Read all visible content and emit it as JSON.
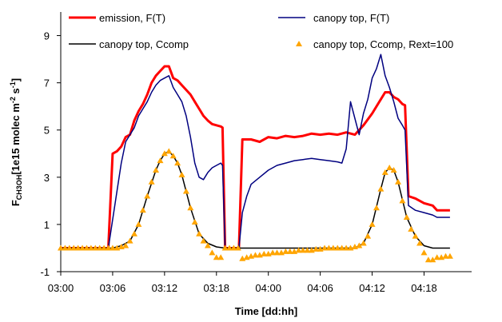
{
  "chart_data": {
    "type": "line",
    "title": "",
    "xlabel": "Time [dd:hh]",
    "ylabel": {
      "main": "F",
      "sub": "CH3OH",
      "unit_a": "[1e15 molec m",
      "sup1": "-2",
      "unit_b": " s",
      "sup2": "-1",
      "unit_c": "]"
    },
    "ylim": [
      -1,
      10
    ],
    "yticks": [
      -1,
      1,
      3,
      5,
      7,
      9
    ],
    "xticks": [
      {
        "pos": 0,
        "label": "03:00"
      },
      {
        "pos": 6,
        "label": "03:06"
      },
      {
        "pos": 12,
        "label": "03:12"
      },
      {
        "pos": 18,
        "label": "03:18"
      },
      {
        "pos": 24,
        "label": "04:00"
      },
      {
        "pos": 30,
        "label": "04:06"
      },
      {
        "pos": 36,
        "label": "04:12"
      },
      {
        "pos": 42,
        "label": "04:18"
      }
    ],
    "xlim": [
      0,
      47.5
    ],
    "grid": false,
    "legend": "top",
    "series": [
      {
        "name": "emission, F(T)",
        "color": "#ff0000",
        "style": "line",
        "width": 3,
        "points": [
          [
            0,
            0
          ],
          [
            5.5,
            0
          ],
          [
            6,
            4
          ],
          [
            6.5,
            4.1
          ],
          [
            7,
            4.3
          ],
          [
            7.5,
            4.7
          ],
          [
            8,
            4.8
          ],
          [
            8.5,
            5.4
          ],
          [
            9,
            5.8
          ],
          [
            9.5,
            6.1
          ],
          [
            10,
            6.5
          ],
          [
            10.5,
            7
          ],
          [
            11,
            7.3
          ],
          [
            11.5,
            7.5
          ],
          [
            12,
            7.7
          ],
          [
            12.5,
            7.7
          ],
          [
            13,
            7.2
          ],
          [
            13.5,
            7.1
          ],
          [
            14,
            6.9
          ],
          [
            14.5,
            6.7
          ],
          [
            15,
            6.5
          ],
          [
            15.5,
            6.2
          ],
          [
            16,
            5.9
          ],
          [
            16.5,
            5.6
          ],
          [
            17,
            5.4
          ],
          [
            17.5,
            5.25
          ],
          [
            18,
            5.2
          ],
          [
            18.5,
            5.15
          ],
          [
            18.7,
            5.1
          ],
          [
            19,
            0
          ],
          [
            20.6,
            0
          ],
          [
            21,
            4.6
          ],
          [
            22,
            4.6
          ],
          [
            23,
            4.5
          ],
          [
            24,
            4.7
          ],
          [
            25,
            4.65
          ],
          [
            26,
            4.75
          ],
          [
            27,
            4.7
          ],
          [
            28,
            4.75
          ],
          [
            29,
            4.85
          ],
          [
            30,
            4.8
          ],
          [
            31,
            4.85
          ],
          [
            32,
            4.8
          ],
          [
            33,
            4.9
          ],
          [
            34,
            4.8
          ],
          [
            35,
            5.2
          ],
          [
            36,
            5.7
          ],
          [
            37,
            6.3
          ],
          [
            37.5,
            6.6
          ],
          [
            38,
            6.6
          ],
          [
            38.5,
            6.4
          ],
          [
            39,
            6.3
          ],
          [
            39.5,
            6.1
          ],
          [
            39.8,
            6.05
          ],
          [
            40.2,
            2.2
          ],
          [
            41,
            2.1
          ],
          [
            42,
            1.9
          ],
          [
            43,
            1.8
          ],
          [
            43.5,
            1.6
          ],
          [
            45,
            1.6
          ]
        ]
      },
      {
        "name": "canopy top, F(T)",
        "color": "#000080",
        "style": "line",
        "width": 1.5,
        "points": [
          [
            0,
            0
          ],
          [
            5.5,
            0
          ],
          [
            6,
            1.2
          ],
          [
            6.5,
            2.4
          ],
          [
            7,
            3.6
          ],
          [
            7.5,
            4.5
          ],
          [
            8,
            4.8
          ],
          [
            8.5,
            5.1
          ],
          [
            9,
            5.6
          ],
          [
            9.5,
            5.9
          ],
          [
            10,
            6.2
          ],
          [
            10.5,
            6.6
          ],
          [
            11,
            6.9
          ],
          [
            11.5,
            7.1
          ],
          [
            12,
            7.2
          ],
          [
            12.5,
            7.3
          ],
          [
            13,
            6.8
          ],
          [
            13.5,
            6.5
          ],
          [
            14,
            6.2
          ],
          [
            14.5,
            5.6
          ],
          [
            15,
            4.7
          ],
          [
            15.5,
            3.6
          ],
          [
            16,
            3
          ],
          [
            16.5,
            2.9
          ],
          [
            17,
            3.2
          ],
          [
            17.5,
            3.4
          ],
          [
            18,
            3.5
          ],
          [
            18.5,
            3.6
          ],
          [
            18.7,
            3.5
          ],
          [
            19,
            0
          ],
          [
            20.6,
            0
          ],
          [
            21,
            1.5
          ],
          [
            21.5,
            2.2
          ],
          [
            22,
            2.7
          ],
          [
            23,
            3
          ],
          [
            24,
            3.3
          ],
          [
            25,
            3.5
          ],
          [
            26,
            3.6
          ],
          [
            27,
            3.7
          ],
          [
            28,
            3.75
          ],
          [
            29,
            3.8
          ],
          [
            30,
            3.75
          ],
          [
            31,
            3.7
          ],
          [
            32,
            3.65
          ],
          [
            32.5,
            3.6
          ],
          [
            33,
            4.2
          ],
          [
            33.5,
            6.2
          ],
          [
            34,
            5.5
          ],
          [
            34.5,
            4.8
          ],
          [
            35,
            5.7
          ],
          [
            35.5,
            6.3
          ],
          [
            36,
            7.2
          ],
          [
            36.5,
            7.6
          ],
          [
            37,
            8.2
          ],
          [
            37.5,
            7.3
          ],
          [
            38,
            6.8
          ],
          [
            38.5,
            6.2
          ],
          [
            39,
            5.5
          ],
          [
            39.5,
            5.2
          ],
          [
            39.8,
            5
          ],
          [
            40.2,
            1.8
          ],
          [
            41,
            1.6
          ],
          [
            42,
            1.5
          ],
          [
            43,
            1.4
          ],
          [
            43.5,
            1.3
          ],
          [
            45,
            1.3
          ]
        ]
      },
      {
        "name": "canopy top, Ccomp",
        "color": "#000000",
        "style": "line",
        "width": 1.5,
        "points": [
          [
            0,
            0
          ],
          [
            6,
            0
          ],
          [
            7,
            0.1
          ],
          [
            8,
            0.3
          ],
          [
            9,
            1
          ],
          [
            10,
            2.2
          ],
          [
            11,
            3.3
          ],
          [
            11.5,
            3.7
          ],
          [
            12,
            4
          ],
          [
            12.5,
            4.1
          ],
          [
            13,
            3.9
          ],
          [
            13.5,
            3.6
          ],
          [
            14,
            3.1
          ],
          [
            15,
            1.7
          ],
          [
            16,
            0.6
          ],
          [
            17,
            0.2
          ],
          [
            18,
            0.05
          ],
          [
            19,
            0
          ],
          [
            34,
            0
          ],
          [
            35,
            0.2
          ],
          [
            36,
            1
          ],
          [
            37,
            2.5
          ],
          [
            37.5,
            3.2
          ],
          [
            38,
            3.4
          ],
          [
            38.5,
            3.3
          ],
          [
            39,
            2.8
          ],
          [
            40,
            1.3
          ],
          [
            41,
            0.5
          ],
          [
            42,
            0.1
          ],
          [
            43,
            0
          ],
          [
            45,
            0
          ]
        ]
      },
      {
        "name": "canopy top, Ccomp, Rext=100",
        "color": "#ffa500",
        "style": "markers",
        "points": [
          [
            0,
            0
          ],
          [
            0.5,
            0
          ],
          [
            1,
            0
          ],
          [
            1.5,
            0
          ],
          [
            2,
            0
          ],
          [
            2.5,
            0
          ],
          [
            3,
            0
          ],
          [
            3.5,
            0
          ],
          [
            4,
            0
          ],
          [
            4.5,
            0
          ],
          [
            5,
            0
          ],
          [
            5.5,
            0
          ],
          [
            6,
            0
          ],
          [
            6.5,
            0
          ],
          [
            7,
            0.05
          ],
          [
            7.5,
            0.1
          ],
          [
            8,
            0.3
          ],
          [
            8.5,
            0.6
          ],
          [
            9,
            1
          ],
          [
            9.5,
            1.6
          ],
          [
            10,
            2.2
          ],
          [
            10.5,
            2.8
          ],
          [
            11,
            3.3
          ],
          [
            11.5,
            3.7
          ],
          [
            12,
            4
          ],
          [
            12.5,
            4.1
          ],
          [
            13,
            3.9
          ],
          [
            13.5,
            3.6
          ],
          [
            14,
            3.1
          ],
          [
            14.5,
            2.4
          ],
          [
            15,
            1.7
          ],
          [
            15.5,
            1.1
          ],
          [
            16,
            0.6
          ],
          [
            16.5,
            0.3
          ],
          [
            17,
            0.1
          ],
          [
            17.5,
            -0.2
          ],
          [
            18,
            -0.4
          ],
          [
            18.5,
            -0.4
          ],
          [
            19,
            0
          ],
          [
            19.5,
            0
          ],
          [
            20,
            0
          ],
          [
            20.5,
            0
          ],
          [
            21,
            -0.45
          ],
          [
            21.5,
            -0.4
          ],
          [
            22,
            -0.35
          ],
          [
            22.5,
            -0.3
          ],
          [
            23,
            -0.3
          ],
          [
            23.5,
            -0.25
          ],
          [
            24,
            -0.25
          ],
          [
            24.5,
            -0.2
          ],
          [
            25,
            -0.2
          ],
          [
            25.5,
            -0.2
          ],
          [
            26,
            -0.15
          ],
          [
            26.5,
            -0.15
          ],
          [
            27,
            -0.15
          ],
          [
            27.5,
            -0.1
          ],
          [
            28,
            -0.1
          ],
          [
            28.5,
            -0.1
          ],
          [
            29,
            -0.1
          ],
          [
            29.5,
            -0.05
          ],
          [
            30,
            -0.05
          ],
          [
            30.5,
            0
          ],
          [
            31,
            0
          ],
          [
            31.5,
            0
          ],
          [
            32,
            0
          ],
          [
            32.5,
            0
          ],
          [
            33,
            0
          ],
          [
            33.5,
            0
          ],
          [
            34,
            0.05
          ],
          [
            34.5,
            0.1
          ],
          [
            35,
            0.2
          ],
          [
            35.5,
            0.5
          ],
          [
            36,
            1
          ],
          [
            36.5,
            1.7
          ],
          [
            37,
            2.5
          ],
          [
            37.5,
            3.2
          ],
          [
            38,
            3.4
          ],
          [
            38.5,
            3.3
          ],
          [
            39,
            2.8
          ],
          [
            39.5,
            2
          ],
          [
            40,
            1.3
          ],
          [
            40.5,
            0.8
          ],
          [
            41,
            0.5
          ],
          [
            41.5,
            0.2
          ],
          [
            42,
            -0.2
          ],
          [
            42.5,
            -0.5
          ],
          [
            43,
            -0.5
          ],
          [
            43.5,
            -0.4
          ],
          [
            44,
            -0.4
          ],
          [
            44.5,
            -0.35
          ],
          [
            45,
            -0.35
          ]
        ]
      }
    ]
  }
}
